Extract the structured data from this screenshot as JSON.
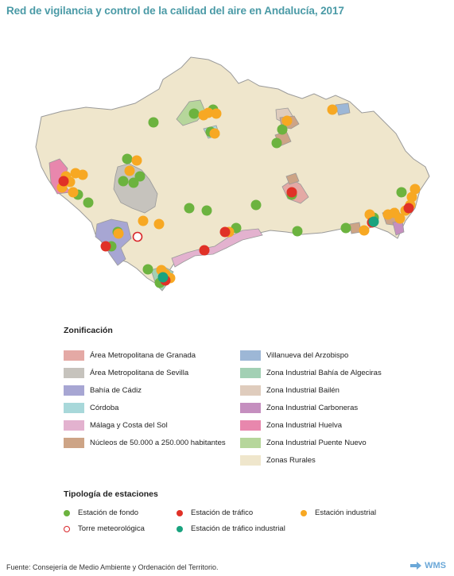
{
  "title": "Red de vigilancia y control de la calidad del aire en Andalucía, 2017",
  "colors": {
    "rural": "#efe6cc",
    "border": "#9a9a9a",
    "fondo": "#6cb33f",
    "trafico": "#e03127",
    "industrial": "#f7a823",
    "trafico_industrial": "#1aa37f",
    "torre": "#d9262a"
  },
  "legend": {
    "heading": "Zonificación",
    "zones": [
      {
        "label": "Área Metropolitana de Granada",
        "color": "#e4a9a5"
      },
      {
        "label": "Área Metropolitana de Sevilla",
        "color": "#c6c3bd"
      },
      {
        "label": "Bahía de Cádiz",
        "color": "#a7a6d3"
      },
      {
        "label": "Córdoba",
        "color": "#a8d8da"
      },
      {
        "label": "Málaga y Costa del Sol",
        "color": "#e3b2cf"
      },
      {
        "label": "Núcleos de 50.000 a 250.000 habitantes",
        "color": "#cda486"
      },
      {
        "label": "Villanueva del Arzobispo",
        "color": "#9db7d6"
      },
      {
        "label": "Zona Industrial Bahía de Algeciras",
        "color": "#a2d0b4"
      },
      {
        "label": "Zona Industrial Bailén",
        "color": "#dfccbd"
      },
      {
        "label": "Zona Industrial Carboneras",
        "color": "#c58fbf"
      },
      {
        "label": "Zona Industrial Huelva",
        "color": "#e887ad"
      },
      {
        "label": "Zona Industrial Puente Nuevo",
        "color": "#b6d69b"
      },
      {
        "label": "Zonas Rurales",
        "color": "#efe6cc"
      }
    ]
  },
  "stations": {
    "heading": "Tipología de estaciones",
    "items": [
      {
        "label": "Estación de fondo",
        "type": "fondo",
        "color": "#6cb33f"
      },
      {
        "label": "Estación de tráfico",
        "type": "trafico",
        "color": "#e03127"
      },
      {
        "label": "Estación industrial",
        "type": "industrial",
        "color": "#f7a823"
      },
      {
        "label": "Torre meteorológica",
        "type": "torre",
        "color": "#d9262a"
      },
      {
        "label": "Estación de tráfico industrial",
        "type": "trafico_industrial",
        "color": "#1aa37f"
      }
    ]
  },
  "source": "Fuente: Consejería de Medio Ambiente y Ordenación del Territorio.",
  "wms_label": "WMS"
}
